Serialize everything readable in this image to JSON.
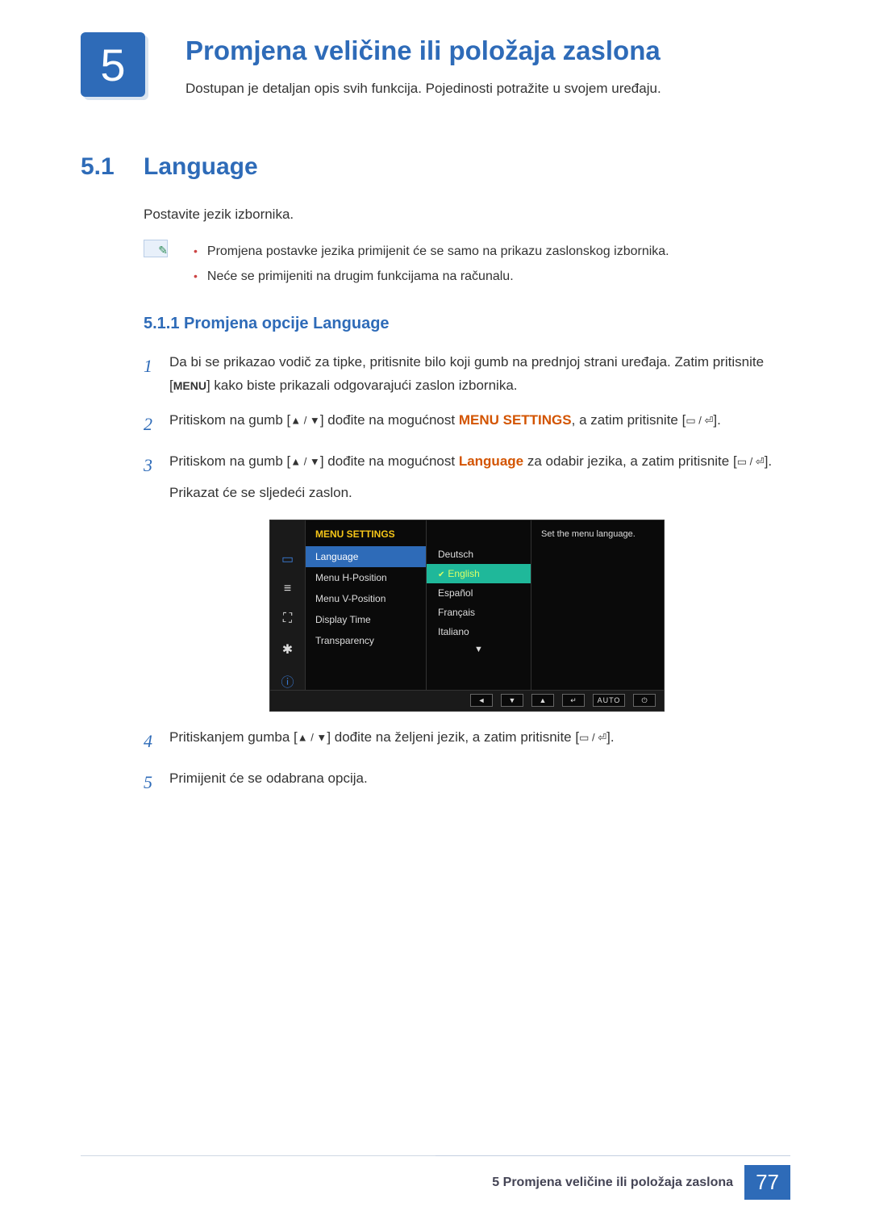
{
  "chapter": {
    "number": "5",
    "title": "Promjena veličine ili položaja zaslona",
    "desc": "Dostupan je detaljan opis svih funkcija. Pojedinosti potražite u svojem uređaju."
  },
  "section": {
    "num": "5.1",
    "title": "Language",
    "intro": "Postavite jezik izbornika.",
    "notes": [
      "Promjena postavke jezika primijenit će se samo na prikazu zaslonskog izbornika.",
      "Neće se primijeniti na drugim funkcijama na računalu."
    ]
  },
  "subsection": {
    "num_title": "5.1.1  Promjena opcije Language"
  },
  "steps": {
    "s1a": "Da bi se prikazao vodič za tipke, pritisnite bilo koji gumb na prednjoj strani uređaja. Zatim pritisnite [",
    "s1_menu": "MENU",
    "s1b": "] kako biste prikazali odgovarajući zaslon izbornika.",
    "s2a": "Pritiskom na gumb [",
    "s2b": "] dođite na mogućnost ",
    "s2_target": "MENU SETTINGS",
    "s2c": ", a zatim pritisnite [",
    "s2d": "].",
    "s3a": "Pritiskom na gumb [",
    "s3b": "] dođite na mogućnost ",
    "s3_target": "Language",
    "s3c": " za odabir jezika, a zatim pritisnite [",
    "s3d": "].",
    "s3e": "Prikazat će se sljedeći zaslon.",
    "s4a": "Pritiskanjem gumba [",
    "s4b": "] dođite na željeni jezik, a zatim pritisnite [",
    "s4c": "].",
    "s5": "Primijenit će se odabrana opcija."
  },
  "osd": {
    "heading": "MENU SETTINGS",
    "items": [
      "Language",
      "Menu H-Position",
      "Menu V-Position",
      "Display Time",
      "Transparency"
    ],
    "active_index": 0,
    "languages": [
      "Deutsch",
      "English",
      "Español",
      "Français",
      "Italiano"
    ],
    "selected_lang_index": 1,
    "tip": "Set the menu language.",
    "footer_auto": "AUTO",
    "sidebar_icons": [
      {
        "name": "picture-icon",
        "glyph": "▭",
        "color": "#3a7bd5"
      },
      {
        "name": "menu-list-icon",
        "glyph": "≡",
        "color": "#ddd"
      },
      {
        "name": "size-position-icon",
        "glyph": "⛶",
        "color": "#ddd"
      },
      {
        "name": "settings-gear-icon",
        "glyph": "✱",
        "color": "#ddd"
      },
      {
        "name": "info-icon",
        "glyph": "ⓘ",
        "color": "#3a7bd5"
      }
    ],
    "footer_icons": [
      "◄",
      "▼",
      "▲",
      "↵"
    ],
    "power_glyph": "⏻"
  },
  "footer": {
    "text": "5 Promjena veličine ili položaja zaslona",
    "page": "77"
  },
  "symbols": {
    "updown": "▲ / ▼",
    "enter": "▭ / ⏎"
  },
  "colors": {
    "brand": "#2e6bb8",
    "accent": "#d35400",
    "osd_highlight": "#1fb89a",
    "osd_heading": "#f5c518"
  }
}
